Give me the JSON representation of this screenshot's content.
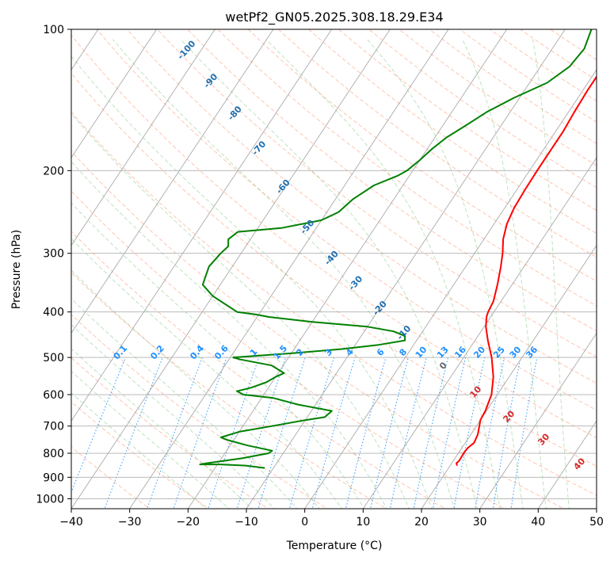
{
  "chart_data": {
    "type": "line",
    "subtype": "skew-T log-P diagram",
    "title": "wetPf2_GN05.2025.308.18.29.E34",
    "xlabel": "Temperature (°C)",
    "ylabel": "Pressure (hPa)",
    "xlim": [
      -40,
      50
    ],
    "ylim": [
      1050,
      100
    ],
    "y_scale": "log",
    "x_ticks": [
      -40,
      -30,
      -20,
      -10,
      0,
      10,
      20,
      30,
      40,
      50
    ],
    "y_ticks": [
      100,
      200,
      300,
      400,
      500,
      600,
      700,
      800,
      900,
      1000
    ],
    "grid": true,
    "series": [
      {
        "color": "#ff0000",
        "points": [
          [
            850,
            21.2
          ],
          [
            840,
            20.8
          ],
          [
            830,
            21.0
          ],
          [
            800,
            20.9
          ],
          [
            780,
            21.0
          ],
          [
            760,
            21.5
          ],
          [
            730,
            21.2
          ],
          [
            700,
            20.5
          ],
          [
            680,
            20.0
          ],
          [
            650,
            19.8
          ],
          [
            600,
            19.0
          ],
          [
            550,
            17.3
          ],
          [
            500,
            14.8
          ],
          [
            460,
            12.2
          ],
          [
            430,
            10.3
          ],
          [
            410,
            9.3
          ],
          [
            400,
            9.0
          ],
          [
            380,
            8.7
          ],
          [
            350,
            7.5
          ],
          [
            320,
            6.0
          ],
          [
            300,
            4.8
          ],
          [
            280,
            3.3
          ],
          [
            260,
            2.2
          ],
          [
            240,
            1.6
          ],
          [
            220,
            1.4
          ],
          [
            200,
            1.3
          ],
          [
            180,
            1.3
          ],
          [
            165,
            1.3
          ],
          [
            150,
            1.0
          ],
          [
            135,
            0.8
          ],
          [
            120,
            0.8
          ],
          [
            110,
            0.6
          ],
          [
            100,
            0.0
          ]
        ]
      },
      {
        "color": "#008000",
        "points": [
          [
            860,
            -11.5
          ],
          [
            850,
            -15.0
          ],
          [
            845,
            -19.5
          ],
          [
            845,
            -23.0
          ],
          [
            840,
            -22.0
          ],
          [
            820,
            -16.5
          ],
          [
            800,
            -12.5
          ],
          [
            790,
            -12.2
          ],
          [
            770,
            -17.0
          ],
          [
            750,
            -21.0
          ],
          [
            740,
            -22.5
          ],
          [
            720,
            -20.0
          ],
          [
            700,
            -15.0
          ],
          [
            680,
            -10.0
          ],
          [
            670,
            -7.0
          ],
          [
            650,
            -6.5
          ],
          [
            630,
            -13.0
          ],
          [
            610,
            -18.0
          ],
          [
            600,
            -23.5
          ],
          [
            590,
            -25.0
          ],
          [
            580,
            -23.0
          ],
          [
            565,
            -21.0
          ],
          [
            550,
            -20.0
          ],
          [
            540,
            -19.0
          ],
          [
            520,
            -22.0
          ],
          [
            510,
            -26.0
          ],
          [
            505,
            -28.0
          ],
          [
            500,
            -29.5
          ],
          [
            490,
            -20.0
          ],
          [
            480,
            -12.0
          ],
          [
            470,
            -6.0
          ],
          [
            460,
            -2.0
          ],
          [
            450,
            -2.5
          ],
          [
            440,
            -5.0
          ],
          [
            430,
            -10.0
          ],
          [
            420,
            -20.0
          ],
          [
            410,
            -28.0
          ],
          [
            405,
            -30.5
          ],
          [
            400,
            -34.0
          ],
          [
            370,
            -40.0
          ],
          [
            350,
            -43.0
          ],
          [
            320,
            -44.0
          ],
          [
            300,
            -43.5
          ],
          [
            290,
            -43.0
          ],
          [
            280,
            -43.8
          ],
          [
            270,
            -43.0
          ],
          [
            265,
            -36.0
          ],
          [
            255,
            -30.0
          ],
          [
            245,
            -28.0
          ],
          [
            230,
            -27.0
          ],
          [
            215,
            -25.0
          ],
          [
            205,
            -22.0
          ],
          [
            200,
            -21.0
          ],
          [
            190,
            -20.0
          ],
          [
            180,
            -19.2
          ],
          [
            170,
            -18.0
          ],
          [
            160,
            -16.0
          ],
          [
            150,
            -14.0
          ],
          [
            140,
            -11.0
          ],
          [
            130,
            -7.0
          ],
          [
            120,
            -5.0
          ],
          [
            110,
            -4.5
          ],
          [
            100,
            -5.5
          ]
        ]
      }
    ],
    "dry_adiabat_labels": [
      "-100",
      "-90",
      "-80",
      "-70",
      "-60",
      "-50",
      "-40",
      "-30",
      "-20",
      "-10"
    ],
    "mixing_ratio_labels": [
      "0.1",
      "0.2",
      "0.4",
      "0.6",
      "1",
      "1.5",
      "2",
      "3",
      "4",
      "6",
      "8",
      "10",
      "13",
      "16",
      "20",
      "25",
      "30",
      "36"
    ],
    "moist_adiabat_labels": [
      "0",
      "10",
      "20",
      "30",
      "40"
    ],
    "colors": {
      "temperature": "#ff0000",
      "dewpoint": "#008000",
      "isotherms": "#aaaaaa",
      "dry_adiabats": "#ff7f50",
      "moist_adiabats": "#2ca02c",
      "mixing_ratio": "#1e90ff",
      "dry_adiabat_labels": "#1f6fb0",
      "moist_labels": "#d62728"
    }
  }
}
